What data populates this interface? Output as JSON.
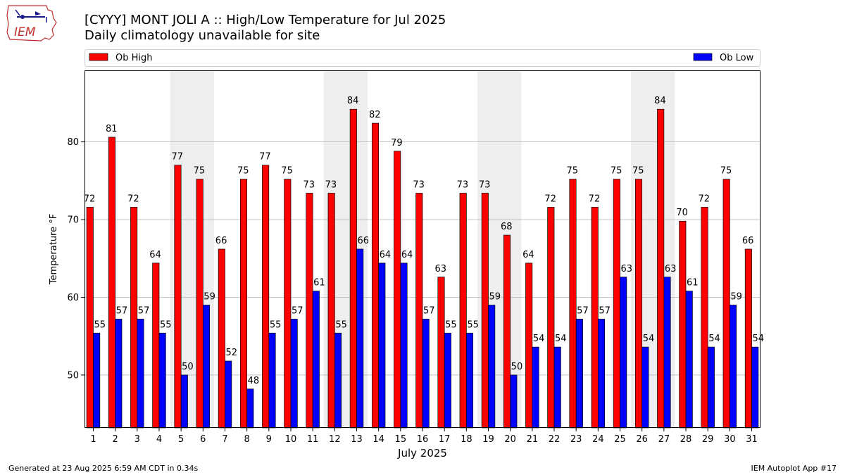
{
  "header": {
    "title": "[CYYY] MONT JOLI A :: High/Low Temperature for Jul 2025",
    "subtitle": "Daily climatology unavailable for site",
    "logo_text": "IEM"
  },
  "footer": {
    "left": "Generated at 23 Aug 2025 6:59 AM CDT in 0.34s",
    "right": "IEM Autoplot App #17"
  },
  "colors": {
    "high": "#ff0000",
    "low": "#0000ff",
    "weekend_band": "#eeeeee",
    "grid": "#b0b0b0"
  },
  "chart_data": {
    "type": "bar",
    "title": "[CYYY] MONT JOLI A :: High/Low Temperature for Jul 2025",
    "subtitle": "Daily climatology unavailable for site",
    "xlabel": "July 2025",
    "ylabel": "Temperature °F",
    "ylim": [
      43.2,
      89.2
    ],
    "yticks": [
      50,
      60,
      70,
      80
    ],
    "grid": "horizontal",
    "legend": "top, above plot",
    "categories": [
      "1",
      "2",
      "3",
      "4",
      "5",
      "6",
      "7",
      "8",
      "9",
      "10",
      "11",
      "12",
      "13",
      "14",
      "15",
      "16",
      "17",
      "18",
      "19",
      "20",
      "21",
      "22",
      "23",
      "24",
      "25",
      "26",
      "27",
      "28",
      "29",
      "30",
      "31"
    ],
    "shaded_days": [
      [
        5,
        6
      ],
      [
        12,
        13
      ],
      [
        19,
        20
      ],
      [
        26,
        27
      ]
    ],
    "series": [
      {
        "name": "Ob High",
        "color": "#ff0000",
        "values": [
          71.6,
          80.6,
          71.6,
          64.4,
          77.0,
          75.2,
          66.2,
          75.2,
          77.0,
          75.2,
          73.4,
          73.4,
          84.2,
          82.4,
          78.8,
          73.4,
          62.6,
          73.4,
          73.4,
          68.0,
          64.4,
          71.6,
          75.2,
          71.6,
          75.2,
          75.2,
          84.2,
          69.8,
          71.6,
          75.2,
          66.2
        ],
        "labels": [
          "72",
          "81",
          "72",
          "64",
          "77",
          "75",
          "66",
          "75",
          "77",
          "75",
          "73",
          "73",
          "84",
          "82",
          "79",
          "73",
          "63",
          "73",
          "73",
          "68",
          "64",
          "72",
          "75",
          "72",
          "75",
          "75",
          "84",
          "70",
          "72",
          "75",
          "66"
        ]
      },
      {
        "name": "Ob Low",
        "color": "#0000ff",
        "values": [
          55.4,
          57.2,
          57.2,
          55.4,
          50.0,
          59.0,
          51.8,
          48.2,
          55.4,
          57.2,
          60.8,
          55.4,
          66.2,
          64.4,
          64.4,
          57.2,
          55.4,
          55.4,
          59.0,
          50.0,
          53.6,
          53.6,
          57.2,
          57.2,
          62.6,
          53.6,
          62.6,
          60.8,
          53.6,
          59.0,
          53.6
        ],
        "labels": [
          "55",
          "57",
          "57",
          "55",
          "50",
          "59",
          "52",
          "48",
          "55",
          "57",
          "61",
          "55",
          "66",
          "64",
          "64",
          "57",
          "55",
          "55",
          "59",
          "50",
          "54",
          "54",
          "57",
          "57",
          "63",
          "54",
          "63",
          "61",
          "54",
          "59",
          "54"
        ]
      }
    ]
  }
}
